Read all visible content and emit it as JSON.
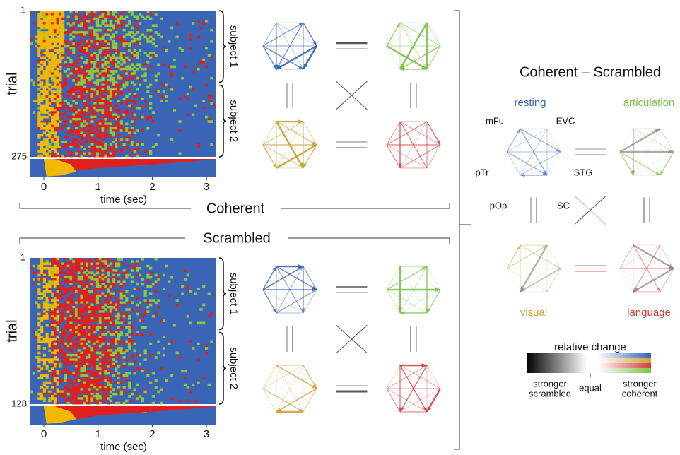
{
  "panels": [
    {
      "label": "Coherent",
      "y_label": "trial",
      "y_ticks": [
        "1",
        "275"
      ],
      "groups": [
        "subject 1",
        "subject 2"
      ],
      "x_ticks": [
        "0",
        "1",
        "2",
        "3"
      ],
      "x_label": "time (sec)"
    },
    {
      "label": "Scrambled",
      "y_label": "trial",
      "y_ticks": [
        "1",
        "128"
      ],
      "groups": [
        "subject 1",
        "subject 2"
      ],
      "x_ticks": [
        "0",
        "1",
        "2",
        "3"
      ],
      "x_label": "time (sec)"
    }
  ],
  "contrast": {
    "title": "Coherent – Scrambled",
    "states": [
      "resting",
      "articulation",
      "visual",
      "language"
    ],
    "regions": [
      "mFu",
      "EVC",
      "pTr",
      "STG",
      "pOp",
      "SC"
    ]
  },
  "legend": {
    "title": "relative change",
    "left": [
      "stronger",
      "scrambled"
    ],
    "middle": "equal",
    "right": [
      "stronger",
      "coherent"
    ]
  }
}
